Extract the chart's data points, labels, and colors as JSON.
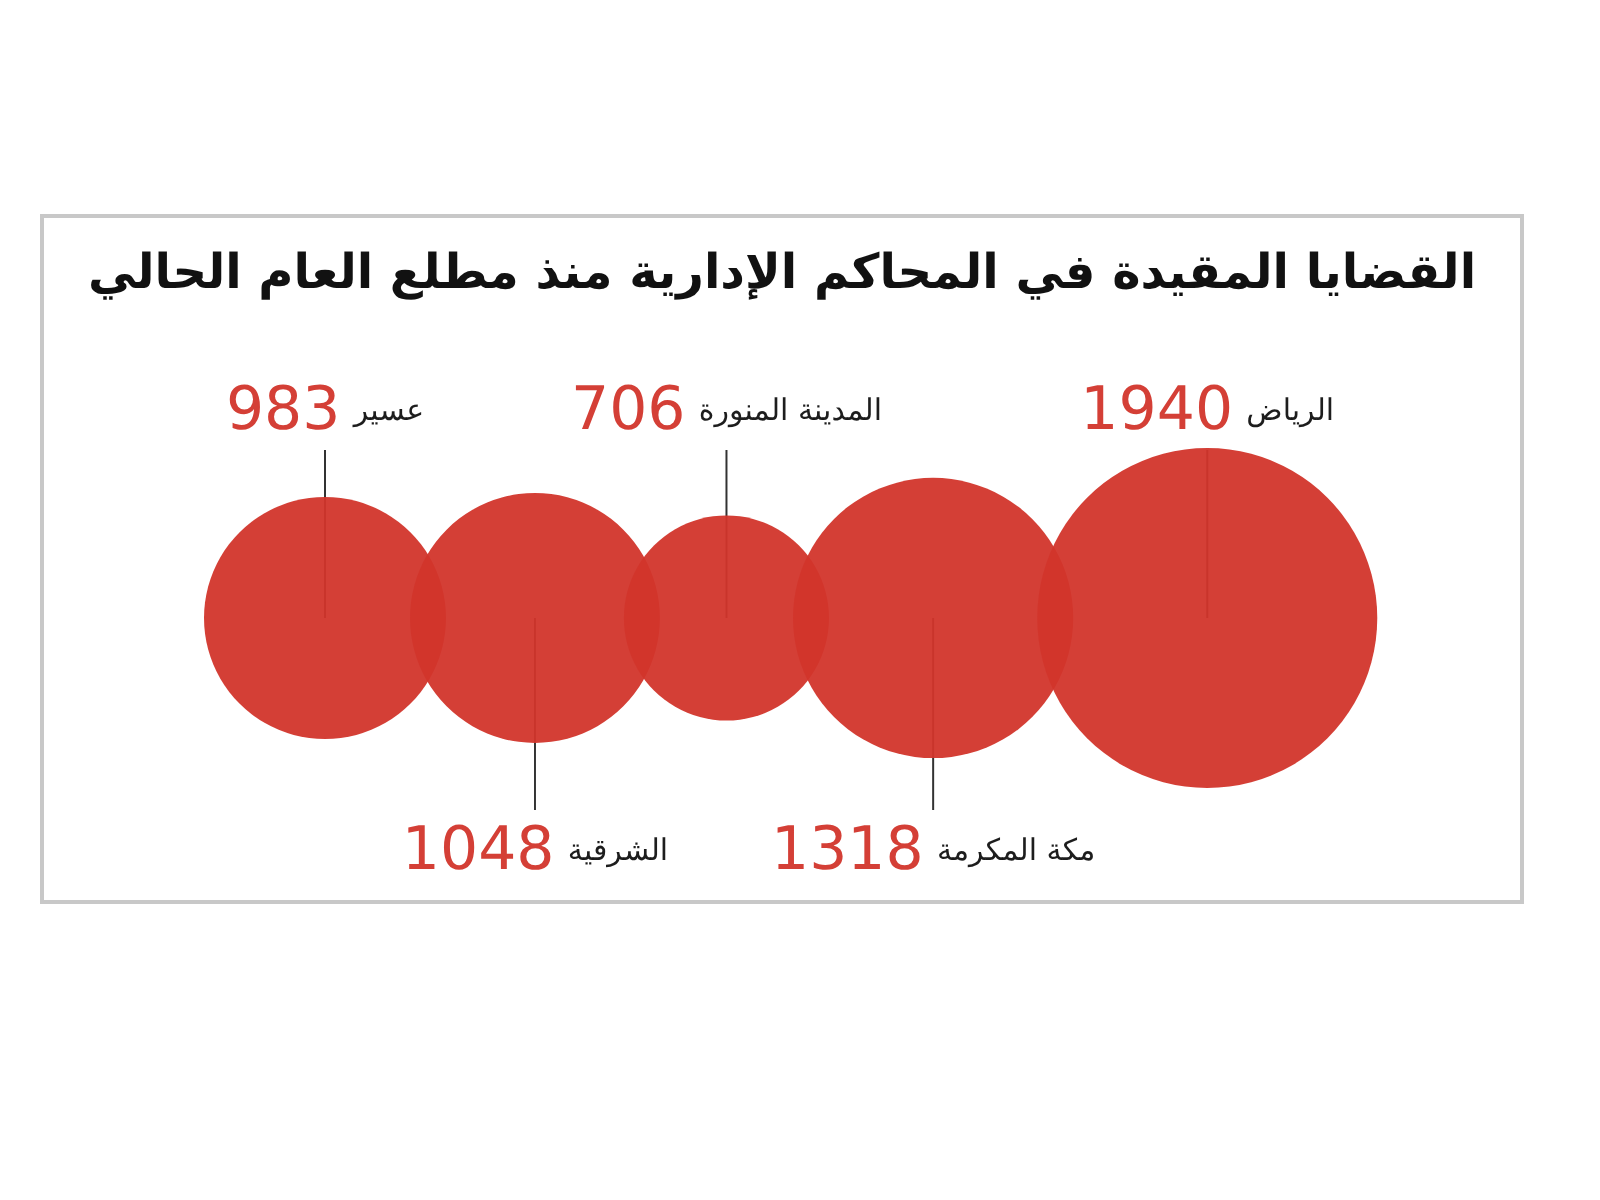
{
  "chart_data": {
    "type": "other",
    "title": "القضايا المقيدة في المحاكم الإدارية منذ مطلع العام الحالي",
    "categories": [
      "عسير",
      "الشرقية",
      "المدينة المنورة",
      "مكة المكرمة",
      "الرياض"
    ],
    "values": [
      983,
      1048,
      706,
      1318,
      1940
    ],
    "color": "#d2352b",
    "data_labels": true
  }
}
